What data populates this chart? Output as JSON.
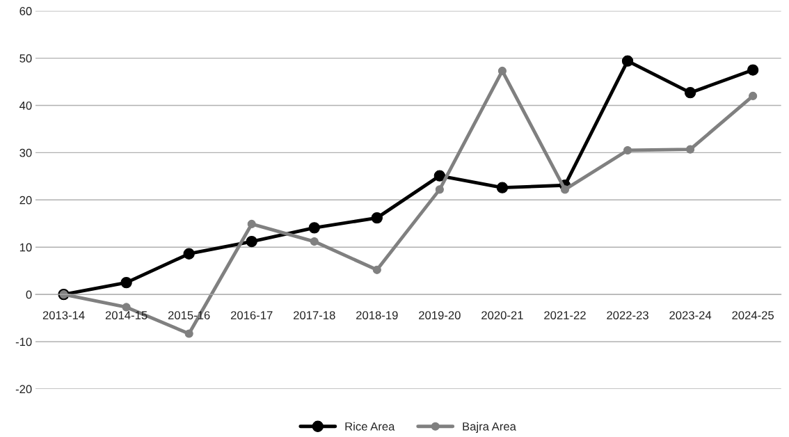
{
  "chart_data": {
    "type": "line",
    "categories": [
      "2013-14",
      "2014-15",
      "2015-16",
      "2016-17",
      "2017-18",
      "2018-19",
      "2019-20",
      "2020-21",
      "2021-22",
      "2022-23",
      "2023-24",
      "2024-25"
    ],
    "series": [
      {
        "name": "Rice Area",
        "color": "#000000",
        "values": [
          0,
          2.5,
          8.6,
          11.2,
          14.1,
          16.2,
          25.1,
          22.6,
          23.1,
          49.4,
          42.7,
          47.5
        ]
      },
      {
        "name": "Bajra Area",
        "color": "#808080",
        "values": [
          0,
          -2.7,
          -8.3,
          14.9,
          11.2,
          5.2,
          22.2,
          47.3,
          22.2,
          30.5,
          30.7,
          42.0
        ]
      }
    ],
    "ylim": [
      -20,
      60
    ],
    "yticks": [
      -20,
      -10,
      0,
      10,
      20,
      30,
      40,
      50,
      60
    ],
    "grid": "y",
    "legend": "bottom",
    "marker": "circle",
    "line_style": "solid"
  }
}
